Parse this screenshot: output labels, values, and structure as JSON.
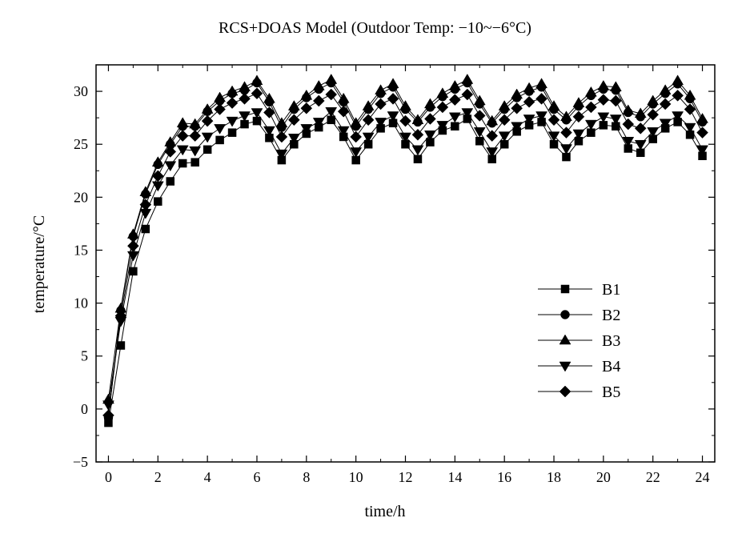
{
  "chart_data": {
    "type": "line",
    "title": "RCS+DOAS Model (Outdoor Temp: −10~−6°C)",
    "xlabel": "time/h",
    "ylabel": "temperature/°C",
    "xlim": [
      -0.5,
      24.5
    ],
    "ylim": [
      -5,
      32.5
    ],
    "xticks": [
      "0",
      "2",
      "4",
      "6",
      "8",
      "10",
      "12",
      "14",
      "16",
      "18",
      "20",
      "22",
      "24"
    ],
    "yticks": [
      "−5",
      "0",
      "5",
      "10",
      "15",
      "20",
      "25",
      "30"
    ],
    "grid": false,
    "legend_position": "lower-right",
    "x": [
      0,
      0.5,
      1,
      1.5,
      2,
      2.5,
      3,
      3.5,
      4,
      4.5,
      5,
      5.5,
      6,
      6.5,
      7,
      7.5,
      8,
      8.5,
      9,
      9.5,
      10,
      10.5,
      11,
      11.5,
      12,
      12.5,
      13,
      13.5,
      14,
      14.5,
      15,
      15.5,
      16,
      16.5,
      17,
      17.5,
      18,
      18.5,
      19,
      19.5,
      20,
      20.5,
      21,
      21.5,
      22,
      22.5,
      23,
      23.5,
      24
    ],
    "series": [
      {
        "name": "B1",
        "marker": "square",
        "values": [
          -1.3,
          6.0,
          13.0,
          17.0,
          19.6,
          21.5,
          23.2,
          23.3,
          24.5,
          25.4,
          26.1,
          26.9,
          27.2,
          25.6,
          23.5,
          25.0,
          26.0,
          26.6,
          27.3,
          25.7,
          23.5,
          25.0,
          26.5,
          27.0,
          25.0,
          23.6,
          25.2,
          26.3,
          26.7,
          27.4,
          25.3,
          23.6,
          25.0,
          26.2,
          26.8,
          27.1,
          25.0,
          23.8,
          25.3,
          26.1,
          26.8,
          26.7,
          24.6,
          24.2,
          25.5,
          26.5,
          27.1,
          25.9,
          23.9
        ]
      },
      {
        "name": "B2",
        "marker": "circle",
        "values": [
          -0.8,
          9.3,
          16.3,
          20.3,
          23.1,
          25.0,
          26.7,
          26.7,
          28.1,
          29.1,
          29.8,
          30.1,
          30.8,
          29.0,
          26.6,
          28.3,
          29.4,
          30.2,
          30.8,
          29.0,
          26.7,
          28.3,
          29.8,
          30.4,
          28.3,
          27.1,
          28.5,
          29.5,
          30.2,
          30.8,
          28.8,
          27.0,
          28.3,
          29.4,
          30.0,
          30.4,
          28.3,
          27.3,
          28.6,
          29.6,
          30.2,
          30.1,
          28.0,
          27.6,
          28.8,
          29.8,
          30.7,
          29.3,
          27.1
        ]
      },
      {
        "name": "B3",
        "marker": "triangle-up",
        "values": [
          0.9,
          9.5,
          16.5,
          20.5,
          23.3,
          25.2,
          27.0,
          26.9,
          28.3,
          29.4,
          30.0,
          30.4,
          31.0,
          29.3,
          27.0,
          28.6,
          29.6,
          30.5,
          31.1,
          29.3,
          27.0,
          28.6,
          30.1,
          30.7,
          28.6,
          27.3,
          28.8,
          29.8,
          30.5,
          31.1,
          29.1,
          27.2,
          28.6,
          29.7,
          30.3,
          30.7,
          28.6,
          27.6,
          28.9,
          29.9,
          30.5,
          30.4,
          28.2,
          27.9,
          29.1,
          30.1,
          31.0,
          29.6,
          27.4
        ]
      },
      {
        "name": "B4",
        "marker": "triangle-down",
        "values": [
          0.4,
          8.3,
          14.5,
          18.5,
          21.1,
          23.0,
          24.5,
          24.4,
          25.7,
          26.5,
          27.2,
          27.7,
          28.0,
          26.3,
          24.1,
          25.6,
          26.5,
          27.1,
          28.1,
          26.3,
          24.3,
          25.7,
          27.1,
          27.7,
          25.7,
          24.5,
          25.9,
          26.8,
          27.6,
          28.0,
          26.2,
          24.3,
          25.8,
          26.7,
          27.4,
          27.7,
          25.8,
          24.6,
          26.0,
          26.9,
          27.6,
          27.4,
          25.3,
          25.0,
          26.2,
          27.0,
          27.7,
          26.6,
          24.5
        ]
      },
      {
        "name": "B5",
        "marker": "diamond",
        "values": [
          -0.6,
          8.8,
          15.4,
          19.3,
          22.0,
          24.3,
          25.8,
          25.8,
          27.2,
          28.3,
          28.9,
          29.3,
          29.8,
          28.0,
          25.7,
          27.3,
          28.4,
          29.1,
          29.7,
          28.1,
          25.7,
          27.3,
          28.8,
          29.3,
          27.2,
          25.9,
          27.4,
          28.5,
          29.2,
          29.7,
          27.7,
          25.8,
          27.3,
          28.4,
          29.0,
          29.3,
          27.3,
          26.1,
          27.6,
          28.5,
          29.2,
          29.1,
          26.9,
          26.5,
          27.8,
          28.8,
          29.6,
          28.3,
          26.1
        ]
      }
    ]
  }
}
